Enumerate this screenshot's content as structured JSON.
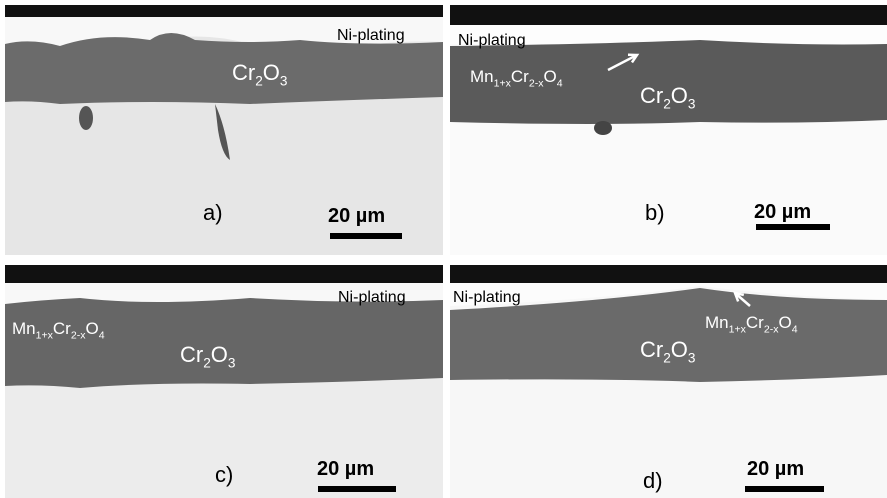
{
  "panels": [
    {
      "label": "a)",
      "ni_plating": "Ni-plating",
      "oxide": [
        "Cr",
        "2",
        "O",
        "3"
      ],
      "scale": "20 µm"
    },
    {
      "label": "b)",
      "ni_plating": "Ni-plating",
      "oxide": [
        "Cr",
        "2",
        "O",
        "3"
      ],
      "spinel": [
        "Mn",
        "1+x",
        "Cr",
        "2-x",
        "O",
        "4"
      ],
      "scale": "20 µm"
    },
    {
      "label": "c)",
      "ni_plating": "Ni-plating",
      "oxide": [
        "Cr",
        "2",
        "O",
        "3"
      ],
      "spinel": [
        "Mn",
        "1+x",
        "Cr",
        "2-x",
        "O",
        "4"
      ],
      "scale": "20 µm"
    },
    {
      "label": "d)",
      "ni_plating": "Ni-plating",
      "oxide": [
        "Cr",
        "2",
        "O",
        "3"
      ],
      "spinel": [
        "Mn",
        "1+x",
        "Cr",
        "2-x",
        "O",
        "4"
      ],
      "scale": "20 µm"
    }
  ]
}
